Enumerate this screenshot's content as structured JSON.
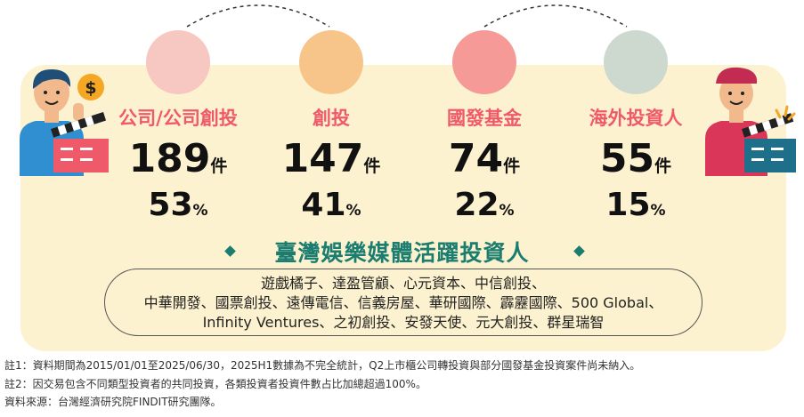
{
  "categories": [
    {
      "name": "公司/公司創投",
      "count": "189",
      "count_unit": "件",
      "percent": "53",
      "percent_unit": "%",
      "color": "#ef5a6a",
      "circle_color": "#f7c7c1"
    },
    {
      "name": "創投",
      "count": "147",
      "count_unit": "件",
      "percent": "41",
      "percent_unit": "%",
      "color": "#ef5a6a",
      "circle_color": "#f7c58a"
    },
    {
      "name": "國發基金",
      "count": "74",
      "count_unit": "件",
      "percent": "22",
      "percent_unit": "%",
      "color": "#ef5a6a",
      "circle_color": "#f59a96"
    },
    {
      "name": "海外投資人",
      "count": "55",
      "count_unit": "件",
      "percent": "15",
      "percent_unit": "%",
      "color": "#ef5a6a",
      "circle_color": "#cdd9cf"
    }
  ],
  "heading": "臺灣娛樂媒體活躍投資人",
  "investor_lines": [
    "遊戲橘子、達盈管顧、心元資本、中信創投、",
    "中華開發、國票創投、遠傳電信、信義房屋、華研國際、霹靂國際、500 Global、",
    "Infinity Ventures、之初創投、安發天使、元大創投、群星瑞智"
  ],
  "notes": [
    "註1：資料期間為2015/01/01至2025/06/30，2025H1數據為不完全統計，Q2上市櫃公司轉投資與部分國發基金投資案件尚未納入。",
    "註2：因交易包含不同類型投資者的共同投資，各類投資者投資件數占比加總超過100%。",
    "資料來源：台灣經濟研究院FINDIT研究團隊。"
  ],
  "dollar_symbol": "$",
  "colors": {
    "panel": "#fdf2cf",
    "accent_red": "#ef5a6a",
    "heading_teal": "#1b7d6f"
  }
}
